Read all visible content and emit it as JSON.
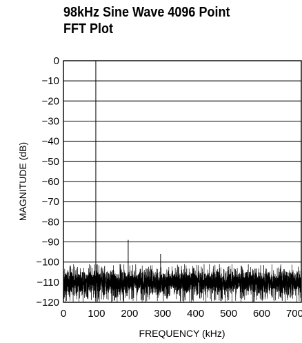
{
  "chart_data": {
    "type": "line",
    "title_lines": [
      "98kHz Sine Wave 4096 Point",
      "FFT Plot"
    ],
    "xlabel": "FREQUENCY (kHz)",
    "ylabel": "MAGNITUDE (dB)",
    "xlim": [
      0,
      720
    ],
    "ylim": [
      -120,
      0
    ],
    "x_ticks": [
      0,
      100,
      200,
      300,
      400,
      500,
      600,
      700
    ],
    "x_tick_labels": [
      "0",
      "100",
      "200",
      "300",
      "400",
      "500",
      "600",
      "700"
    ],
    "y_ticks": [
      0,
      -10,
      -20,
      -30,
      -40,
      -50,
      -60,
      -70,
      -80,
      -90,
      -100,
      -110,
      -120
    ],
    "y_tick_labels": [
      "0",
      "−10",
      "−20",
      "−30",
      "−40",
      "−50",
      "−60",
      "−70",
      "−80",
      "−90",
      "−100",
      "−110",
      "−120"
    ],
    "grid": "horizontal",
    "noise_floor": {
      "mean": -110,
      "spread": [
        -120,
        -101
      ]
    },
    "series": [
      {
        "points": [
          {
            "x": 98,
            "y": 0
          },
          {
            "x": 196,
            "y": -89
          },
          {
            "x": 294,
            "y": -96
          }
        ]
      }
    ]
  }
}
